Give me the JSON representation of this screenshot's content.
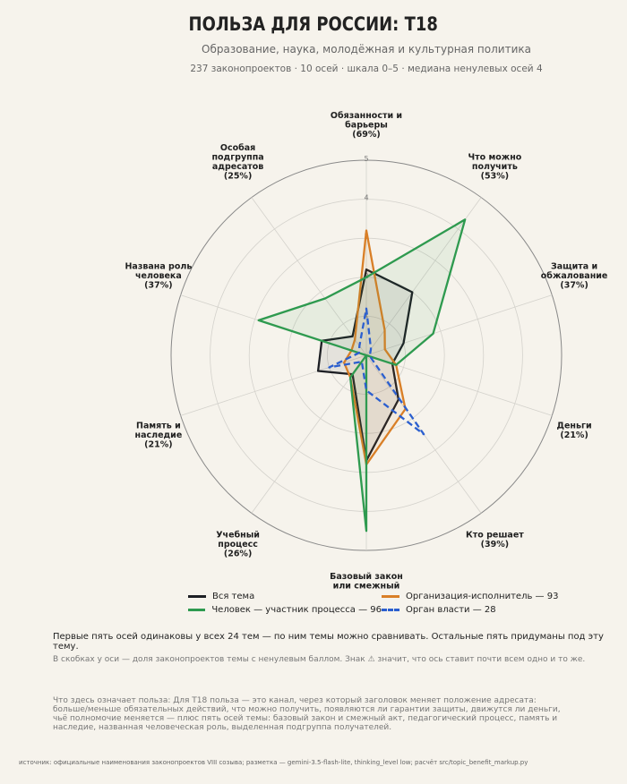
{
  "header": {
    "title": "ПОЛЬЗА ДЛЯ РОССИИ: Т18",
    "subtitle": "Образование, наука, молодёжная и культурная политика",
    "meta": "237 законопроектов · 10 осей · шкала 0–5 · медиана ненулевых осей 4"
  },
  "chart_data": {
    "type": "radar",
    "rlim": [
      0,
      5
    ],
    "rticks": [
      "1",
      "2",
      "3",
      "4",
      "5"
    ],
    "axes": [
      {
        "label": [
          "Обязанности и",
          "барьеры",
          "(69%)"
        ]
      },
      {
        "label": [
          "Что можно",
          "получить",
          "(53%)"
        ]
      },
      {
        "label": [
          "Защита и",
          "обжалование",
          "(37%)"
        ]
      },
      {
        "label": [
          "Деньги",
          "(21%)"
        ]
      },
      {
        "label": [
          "Кто решает",
          "(39%)"
        ]
      },
      {
        "label": [
          "Базовый закон",
          "или смежный",
          "(62%)"
        ]
      },
      {
        "label": [
          "Учебный",
          "процесс",
          "(26%)"
        ]
      },
      {
        "label": [
          "Память и",
          "наследие",
          "(21%)"
        ]
      },
      {
        "label": [
          "Названа роль",
          "человека",
          "(37%)"
        ]
      },
      {
        "label": [
          "Особая",
          "подгруппа",
          "адресатов",
          "(25%)"
        ]
      }
    ],
    "series": [
      {
        "name": "Вся тема",
        "color": "#1d1f24",
        "dash": false,
        "fill": true,
        "values": [
          2.2,
          2.0,
          1.0,
          0.7,
          1.4,
          2.7,
          0.6,
          1.3,
          1.2,
          0.6
        ]
      },
      {
        "name": "Организация-исполнитель — 93",
        "color": "#d97f27",
        "dash": false,
        "fill": true,
        "values": [
          3.2,
          0.8,
          0.5,
          0.8,
          1.7,
          2.8,
          0.7,
          0.6,
          0.4,
          0.5
        ]
      },
      {
        "name": "Человек — участник процесса — 96",
        "color": "#2e9a4f",
        "dash": false,
        "fill": true,
        "values": [
          2.0,
          4.3,
          1.8,
          0.8,
          0.0,
          4.5,
          0.7,
          0.0,
          2.9,
          1.8
        ]
      },
      {
        "name": "Орган власти — 28",
        "color": "#2b5fcf",
        "dash": true,
        "fill": false,
        "values": [
          1.2,
          0.2,
          0.1,
          0.1,
          2.5,
          0.9,
          0.2,
          1.0,
          0.2,
          0.3
        ]
      }
    ]
  },
  "legend": {
    "items": [
      {
        "label": "Вся тема",
        "color": "#1d1f24",
        "dash": false
      },
      {
        "label": "Организация-исполнитель — 93",
        "color": "#d97f27",
        "dash": false
      },
      {
        "label": "Человек — участник процесса — 96",
        "color": "#2e9a4f",
        "dash": false
      },
      {
        "label": "Орган власти — 28",
        "color": "#2b5fcf",
        "dash": true
      }
    ]
  },
  "notes": {
    "compare": "Первые пять осей одинаковы у всех 24 тем — по ним темы можно сравнивать. Остальные пять придуманы под эту тему.",
    "brackets": "В скобках у оси — доля законопроектов темы с ненулевым баллом. Знак ⚠ значит, что ось ставит почти всем одно и то же.",
    "meaning": "Что здесь означает польза: Для Т18 польза — это канал, через который заголовок меняет положение адресата: больше/меньше обязательных действий, что можно получить, появляются ли гарантии защиты, движутся ли деньги, чьё полномочие меняется — плюс пять осей темы: базовый закон и смежный акт, педагогический процесс, память и наследие, названная человеческая роль, выделенная подгруппа получателей.",
    "source": "источник: официальные наименования законопроектов VIII созыва; разметка — gemini-3.5-flash-lite, thinking_level low; расчёт src/topic_benefit_markup.py"
  }
}
